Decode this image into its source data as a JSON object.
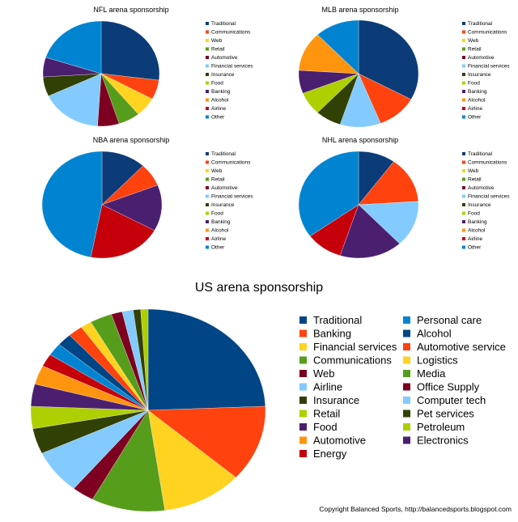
{
  "colors": {
    "Traditional": "#0b3c78",
    "Communications": "#ff420e",
    "Web": "#ffd320",
    "Retail": "#579d1c",
    "Automotive": "#7e0021",
    "Financial services": "#83caff",
    "Insurance": "#314004",
    "Food": "#aecf00",
    "Banking": "#4b1f6f",
    "Alcohol": "#ff950e",
    "Airline": "#c5000b",
    "Other": "#0084d1"
  },
  "footer": "Copyright Balanced Sports, http://balancedsports.blogspot.com",
  "chart_data": [
    {
      "type": "pie",
      "title": "NFL arena sponsorship",
      "legend": [
        "Traditional",
        "Communications",
        "Web",
        "Retail",
        "Automotive",
        "Financial services",
        "Insurance",
        "Food",
        "Banking",
        "Alcohol",
        "Airline",
        "Other"
      ],
      "slices": [
        {
          "label": "Traditional",
          "value": 27
        },
        {
          "label": "Communications",
          "value": 6
        },
        {
          "label": "Web",
          "value": 6
        },
        {
          "label": "Retail",
          "value": 6
        },
        {
          "label": "Automotive",
          "value": 6
        },
        {
          "label": "Financial services",
          "value": 17
        },
        {
          "label": "Insurance",
          "value": 6
        },
        {
          "label": "Banking",
          "value": 6
        },
        {
          "label": "Other",
          "value": 20
        }
      ]
    },
    {
      "type": "pie",
      "title": "MLB arena sponsorship",
      "legend": [
        "Traditional",
        "Communications",
        "Web",
        "Retail",
        "Automotive",
        "Financial services",
        "Insurance",
        "Food",
        "Banking",
        "Alcohol",
        "Airline",
        "Other"
      ],
      "slices": [
        {
          "label": "Traditional",
          "value": 33
        },
        {
          "label": "Communications",
          "value": 11
        },
        {
          "label": "Financial services",
          "value": 11
        },
        {
          "label": "Insurance",
          "value": 7
        },
        {
          "label": "Food",
          "value": 7
        },
        {
          "label": "Banking",
          "value": 7
        },
        {
          "label": "Alcohol",
          "value": 12
        },
        {
          "label": "Other",
          "value": 12
        }
      ]
    },
    {
      "type": "pie",
      "title": "NBA arena sponsorship",
      "legend": [
        "Traditional",
        "Communications",
        "Web",
        "Retail",
        "Automotive",
        "Financial services",
        "Insurance",
        "Food",
        "Banking",
        "Alcohol",
        "Airline",
        "Other"
      ],
      "slices": [
        {
          "label": "Traditional",
          "value": 12
        },
        {
          "label": "Communications",
          "value": 7
        },
        {
          "label": "Banking",
          "value": 14
        },
        {
          "label": "Airline",
          "value": 20
        },
        {
          "label": "Other",
          "value": 47
        }
      ]
    },
    {
      "type": "pie",
      "title": "NHL arena sponsorship",
      "legend": [
        "Traditional",
        "Communications",
        "Web",
        "Retail",
        "Automotive",
        "Financial services",
        "Insurance",
        "Food",
        "Banking",
        "Alcohol",
        "Airline",
        "Other"
      ],
      "slices": [
        {
          "label": "Traditional",
          "value": 10
        },
        {
          "label": "Communications",
          "value": 14
        },
        {
          "label": "Financial services",
          "value": 14
        },
        {
          "label": "Banking",
          "value": 17
        },
        {
          "label": "Airline",
          "value": 10
        },
        {
          "label": "Other",
          "value": 35
        }
      ]
    },
    {
      "type": "pie",
      "title": "US arena sponsorship",
      "legend": [
        "Traditional",
        "Personal care",
        "Banking",
        "Alcohol",
        "Financial services",
        "Automotive service",
        "Communications",
        "Logistics",
        "Web",
        "Media",
        "Airline",
        "Office Supply",
        "Insurance",
        "Computer tech",
        "Retail",
        "Pet services",
        "Food",
        "Petroleum",
        "Automotive",
        "Electronics",
        "Energy"
      ],
      "legend_colors": {
        "Traditional": "#004586",
        "Personal care": "#0084d1",
        "Banking": "#ff420e",
        "Alcohol": "#004586",
        "Financial services": "#ffd320",
        "Automotive service": "#ff420e",
        "Communications": "#579d1c",
        "Logistics": "#ffd320",
        "Web": "#7e0021",
        "Media": "#579d1c",
        "Airline": "#83caff",
        "Office Supply": "#7e0021",
        "Insurance": "#314004",
        "Computer tech": "#83caff",
        "Retail": "#aecf00",
        "Pet services": "#314004",
        "Food": "#4b1f6f",
        "Petroleum": "#aecf00",
        "Automotive": "#ff950e",
        "Electronics": "#4b1f6f",
        "Energy": "#c5000b"
      },
      "slices": [
        {
          "label": "Traditional",
          "value": 24,
          "color": "#004586"
        },
        {
          "label": "Banking",
          "value": 12,
          "color": "#ff420e"
        },
        {
          "label": "Financial services",
          "value": 11,
          "color": "#ffd320"
        },
        {
          "label": "Communications",
          "value": 10,
          "color": "#579d1c"
        },
        {
          "label": "Web",
          "value": 3,
          "color": "#7e0021"
        },
        {
          "label": "Airline",
          "value": 7,
          "color": "#83caff"
        },
        {
          "label": "Insurance",
          "value": 4,
          "color": "#314004"
        },
        {
          "label": "Retail",
          "value": 3.5,
          "color": "#aecf00"
        },
        {
          "label": "Food",
          "value": 3.5,
          "color": "#4b1f6f"
        },
        {
          "label": "Automotive",
          "value": 3,
          "color": "#ff950e"
        },
        {
          "label": "Energy",
          "value": 2,
          "color": "#c5000b"
        },
        {
          "label": "Personal care",
          "value": 2,
          "color": "#0084d1"
        },
        {
          "label": "Alcohol",
          "value": 2,
          "color": "#004586"
        },
        {
          "label": "Automotive service",
          "value": 2,
          "color": "#ff420e"
        },
        {
          "label": "Logistics",
          "value": 1.5,
          "color": "#ffd320"
        },
        {
          "label": "Media",
          "value": 3,
          "color": "#579d1c"
        },
        {
          "label": "Office Supply",
          "value": 1.5,
          "color": "#7e0021"
        },
        {
          "label": "Computer tech",
          "value": 1.5,
          "color": "#83caff"
        },
        {
          "label": "Pet services",
          "value": 1,
          "color": "#314004"
        },
        {
          "label": "Petroleum",
          "value": 1,
          "color": "#aecf00"
        }
      ]
    }
  ]
}
